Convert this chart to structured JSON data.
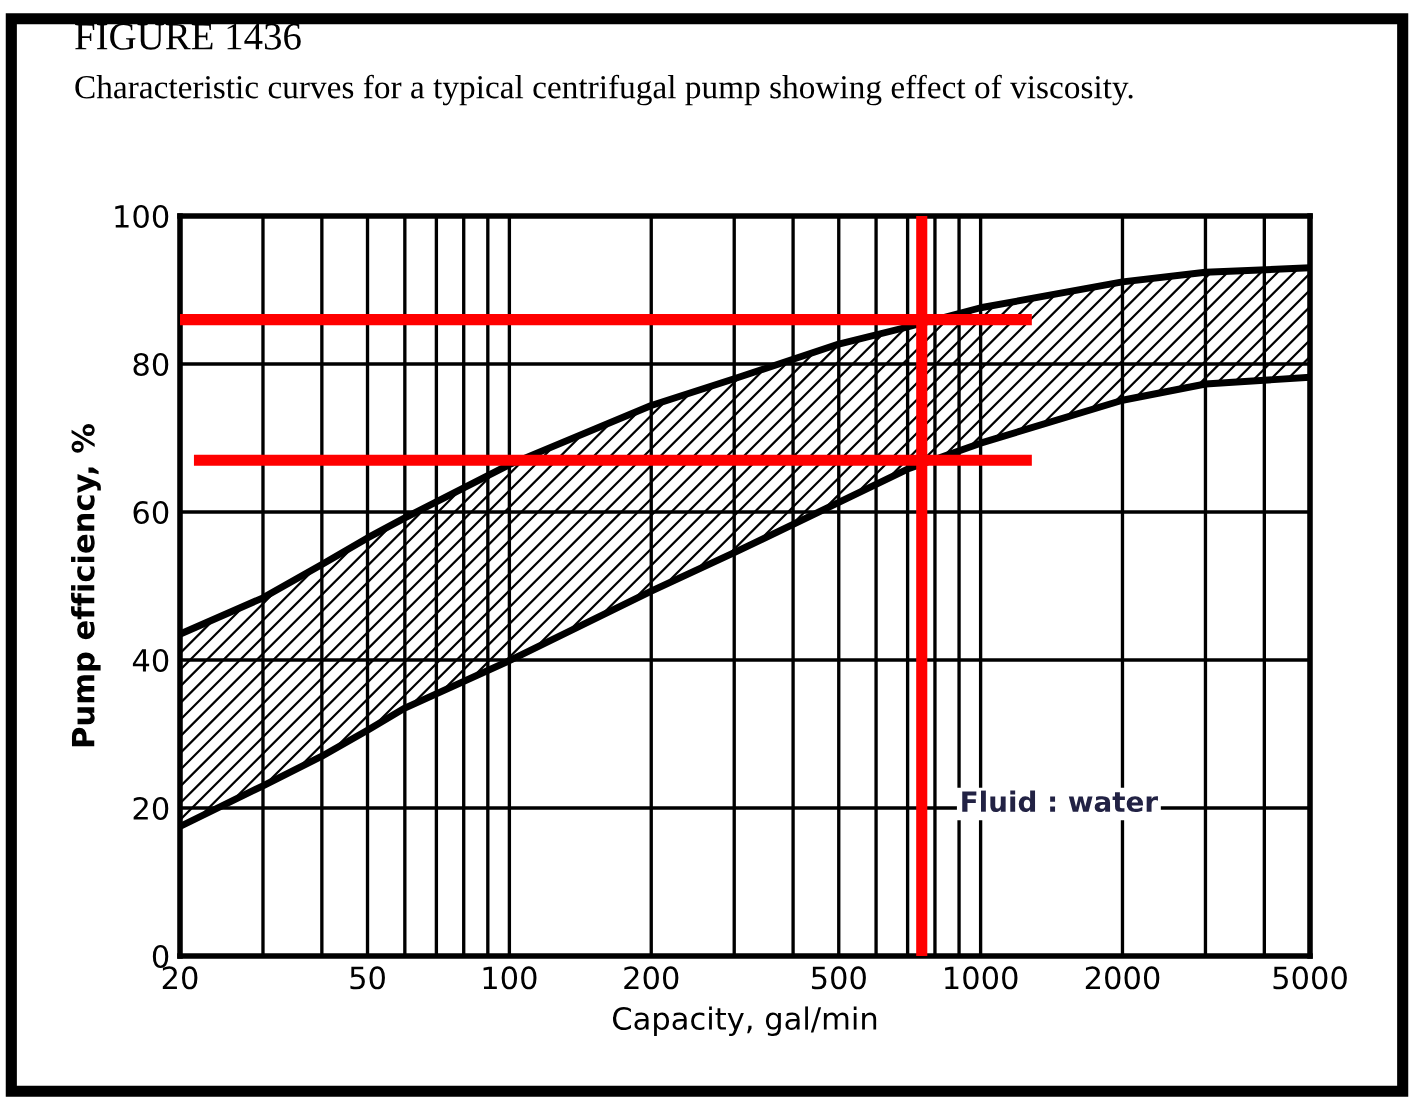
{
  "chart_data": {
    "type": "line",
    "title": "FIGURE 1436",
    "subtitle": "Characteristic curves for a typical centrifugal pump showing effect of viscosity.",
    "xlabel": "Capacity, gal/min",
    "ylabel": "Pump efficiency, %",
    "log": "x",
    "x": [
      20,
      30,
      40,
      50,
      60,
      100,
      200,
      300,
      500,
      700,
      1000,
      2000,
      3000,
      5000
    ],
    "series": [
      {
        "color": "#000000",
        "values": [
          43.5,
          48.4,
          52.9,
          56.5,
          59.2,
          66.4,
          74.4,
          78,
          82.7,
          85,
          87.6,
          91.1,
          92.4,
          93
        ],
        "lower": [
          17.5,
          23,
          27,
          30.5,
          33.5,
          39.9,
          49.3,
          54.5,
          61.3,
          65.8,
          69.3,
          75.1,
          77.3,
          78.2
        ],
        "upper": [
          43.5,
          48.4,
          52.9,
          56.5,
          59.2,
          66.4,
          74.4,
          78,
          82.7,
          85,
          87.6,
          91.1,
          92.4,
          93
        ]
      },
      {
        "color": "#000000",
        "values": [
          17.5,
          23,
          27,
          30.5,
          33.5,
          39.9,
          49.3,
          54.5,
          61.3,
          65.8,
          69.3,
          75.1,
          77.3,
          78.2
        ]
      },
      {
        "color": "#ff0000",
        "x": [
          20,
          1250
        ],
        "values": [
          86,
          86
        ]
      },
      {
        "color": "#ff0000",
        "x": [
          22,
          1250
        ],
        "values": [
          67,
          67
        ]
      }
    ],
    "ref_lines": [
      {
        "axis": "x",
        "value": 750,
        "color": "#ff0000"
      }
    ],
    "annotations": [
      "Fluid : water"
    ],
    "xlim": [
      20,
      5000
    ],
    "ylim": [
      0,
      100
    ],
    "xticks": [
      20,
      50,
      100,
      200,
      500,
      1000,
      2000,
      5000
    ],
    "yticks": [
      0,
      20,
      40,
      60,
      80,
      100
    ],
    "grid": true
  }
}
